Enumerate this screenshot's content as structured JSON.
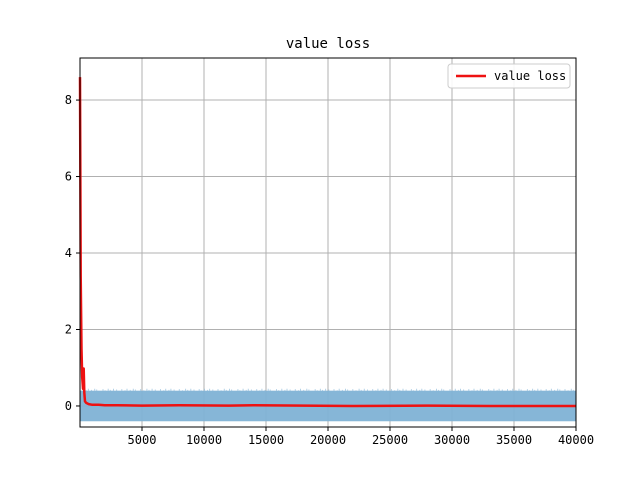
{
  "chart_data": {
    "type": "line",
    "title": "value loss",
    "xlabel": "",
    "ylabel": "",
    "xlim": [
      0,
      40000
    ],
    "ylim": [
      -0.55,
      9.1
    ],
    "x_ticks": [
      5000,
      10000,
      15000,
      20000,
      25000,
      30000,
      35000,
      40000
    ],
    "y_ticks": [
      0,
      2,
      4,
      6,
      8
    ],
    "grid": true,
    "legend": {
      "placement": "top-right",
      "entries": [
        "value loss"
      ]
    },
    "series": [
      {
        "name": "value loss",
        "role": "smoothed",
        "color": "#ee1111",
        "x": [
          0,
          60,
          120,
          180,
          240,
          300,
          350,
          400,
          500,
          700,
          1000,
          1500,
          2000,
          3000,
          5000,
          8000,
          12000,
          14000,
          18000,
          22000,
          28000,
          33000,
          40000
        ],
        "y": [
          8.6,
          3.4,
          1.5,
          0.75,
          0.45,
          0.98,
          0.35,
          0.12,
          0.08,
          0.05,
          0.03,
          0.03,
          0.02,
          0.02,
          0.01,
          0.02,
          0.01,
          0.02,
          0.01,
          0.0,
          0.01,
          0.0,
          0.0
        ]
      },
      {
        "role": "raw",
        "color": "#7fb2d5",
        "x_range": [
          0,
          40000
        ],
        "band_upper": 0.4,
        "band_lower": -0.4,
        "spikes_upper": 0.45
      }
    ]
  }
}
